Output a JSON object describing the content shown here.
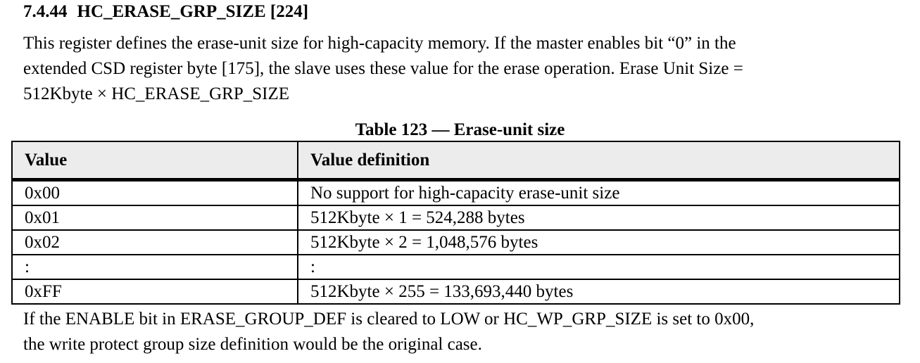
{
  "heading": {
    "number": "7.4.44",
    "title": "HC_ERASE_GRP_SIZE [224]"
  },
  "intro_lines": [
    "This register defines the erase-unit size for high-capacity memory. If the master enables bit “0” in the",
    "extended CSD register byte [175], the slave uses these value for the erase operation. Erase Unit Size =",
    "512Kbyte × HC_ERASE_GRP_SIZE"
  ],
  "table": {
    "caption": "Table 123 — Erase-unit size",
    "headers": [
      "Value",
      "Value definition"
    ],
    "rows": [
      [
        "0x00",
        "No support for high-capacity erase-unit size"
      ],
      [
        "0x01",
        "512Kbyte × 1 = 524,288 bytes"
      ],
      [
        "0x02",
        "512Kbyte × 2 = 1,048,576 bytes"
      ],
      [
        ":",
        ":"
      ],
      [
        "0xFF",
        "512Kbyte × 255 = 133,693,440 bytes"
      ]
    ]
  },
  "footer_lines": [
    "If the ENABLE bit in ERASE_GROUP_DEF is cleared to LOW or HC_WP_GRP_SIZE is set to 0x00,",
    "the write protect group size definition would be the original case."
  ]
}
